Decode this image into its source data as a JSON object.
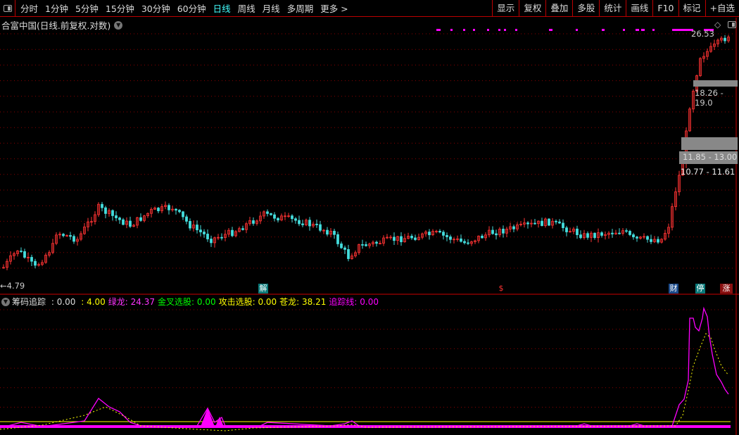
{
  "toolbar": {
    "periods": [
      "分时",
      "1分钟",
      "5分钟",
      "15分钟",
      "30分钟",
      "60分钟",
      "日线",
      "周线",
      "月线",
      "多周期",
      "更多 >"
    ],
    "active": "日线",
    "right_buttons": [
      "显示",
      "复权",
      "叠加",
      "多股",
      "统计",
      "画线",
      "F10",
      "标记",
      "+自选"
    ]
  },
  "chart": {
    "title": "合富中国(日线.前复权.对数)",
    "high_label": "26.53",
    "low_label": "←4.79",
    "ranges": [
      "18.26 - 19.0",
      "11.85 - 13.00",
      "10.77 - 11.61"
    ],
    "markers": [
      {
        "text": "解",
        "color": "#0a7a7a"
      },
      {
        "text": "$",
        "color": "#e00"
      },
      {
        "text": "财",
        "color": "#1a4a8a"
      },
      {
        "text": "停",
        "color": "#0a7a7a"
      },
      {
        "text": "涨",
        "color": "#8a1010"
      }
    ],
    "colors": {
      "up": "#ff3333",
      "down": "#44dddd",
      "grid": "#8b0000"
    }
  },
  "indicator": {
    "name": "筹码追踪",
    "items": [
      {
        "label": " : 0.00",
        "color": "#dddddd"
      },
      {
        "label": " : 4.00",
        "color": "#ffff00"
      },
      {
        "label": "绿龙: 24.37",
        "color": "#ff33ff"
      },
      {
        "label": "金叉选股: 0.00",
        "color": "#00ff00"
      },
      {
        "label": "攻击选股: 0.00",
        "color": "#ffff00"
      },
      {
        "label": "苍龙: 38.21",
        "color": "#ffff00"
      },
      {
        "label": "追踪线: 0.00",
        "color": "#ff00ff"
      }
    ]
  }
}
